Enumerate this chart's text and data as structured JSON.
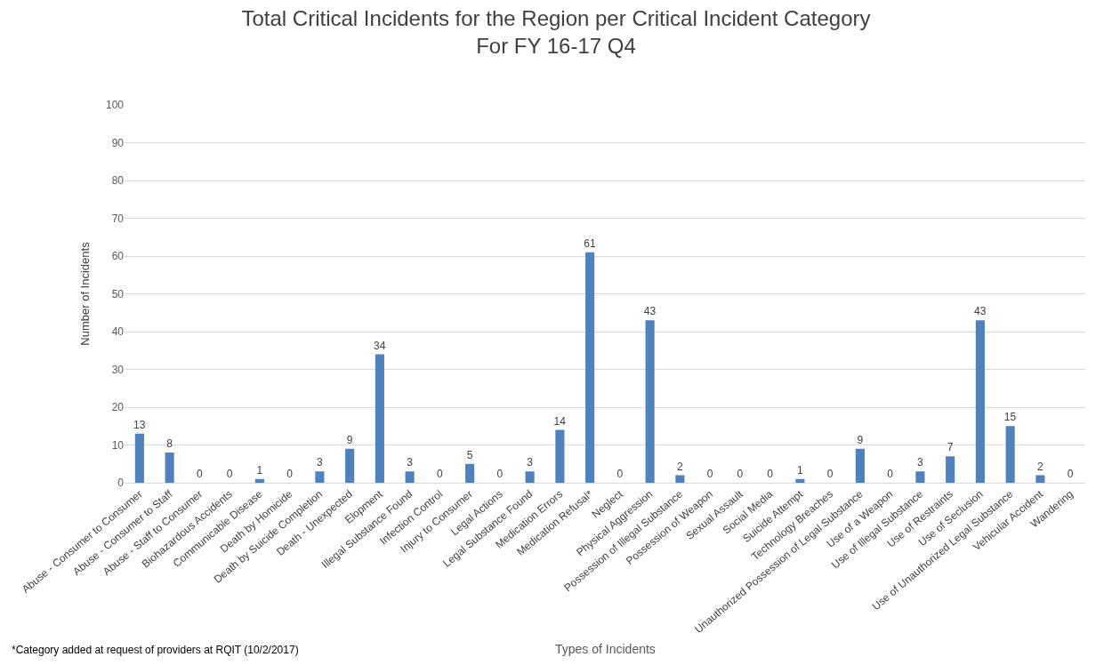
{
  "chart_data": {
    "type": "bar",
    "title": "Total Critical Incidents for the Region per Critical Incident Category\nFor FY 16-17 Q4",
    "xlabel": "Types of Incidents",
    "ylabel": "Number of Incidents",
    "categories": [
      "Abuse - Consumer to Consumer",
      "Abuse - Consumer to Staff",
      "Abuse - Staff to Consumer",
      "Biohazardous Accidents",
      "Communicable Disease",
      "Death by Homicide",
      "Death by Suicide Completion",
      "Death - Unexpected",
      "Elopment",
      "Illegal Substance Found",
      "Infection Control",
      "Injury to Consumer",
      "Legal Actions",
      "Legal Substance Found",
      "Medication Errors",
      "Medication Refusal*",
      "Neglect",
      "Physical Aggression",
      "Possession of Illegal Substance",
      "Possession of Weapon",
      "Sexual Assault",
      "Social Media",
      "Suicide Attempt",
      "Technology Breaches",
      "Unauthorized Possession of Legal Substance",
      "Use of a Weapon",
      "Use of Illegal Substance",
      "Use of Restraints",
      "Use of Seclusion",
      "Use of Unauthorized Legal Substance",
      "Vehicular Accident",
      "Wandering"
    ],
    "values": [
      13,
      8,
      0,
      0,
      1,
      0,
      3,
      9,
      34,
      3,
      0,
      5,
      0,
      3,
      14,
      61,
      0,
      43,
      2,
      0,
      0,
      0,
      1,
      0,
      9,
      0,
      3,
      7,
      43,
      15,
      2,
      0
    ],
    "color": "#4f81bd",
    "ylim": [
      0,
      100
    ],
    "yticks": [
      0,
      10,
      20,
      30,
      40,
      50,
      60,
      70,
      80,
      90,
      100
    ],
    "grid": "y",
    "data_labels": true,
    "legend": false,
    "annotations": [
      "*Category added at request of providers at RQIT (10/2/2017)"
    ]
  }
}
